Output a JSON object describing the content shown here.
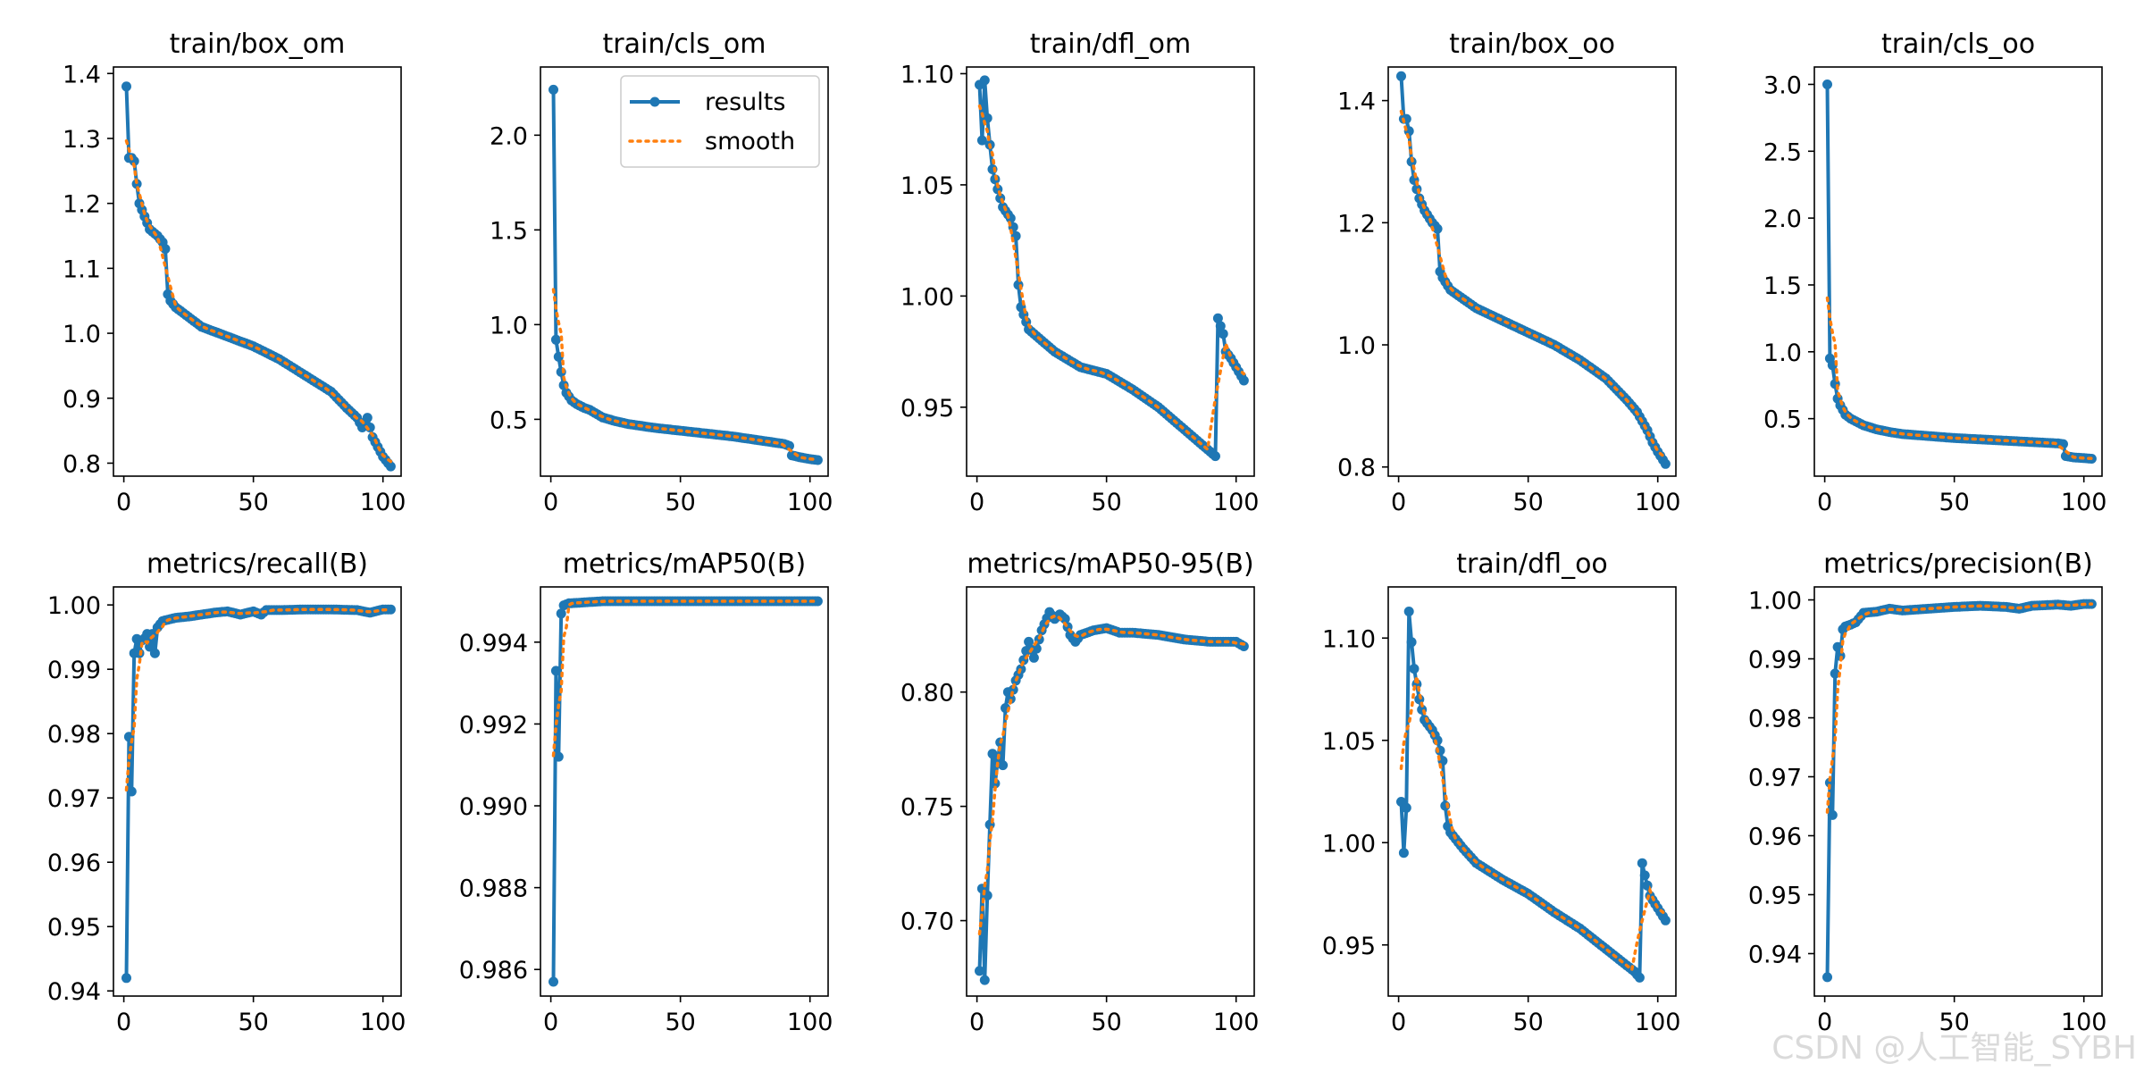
{
  "watermark": "CSDN @人工智能_SYBH",
  "legend": {
    "results": "results",
    "smooth": "smooth",
    "placement": "upper right of train/cls_om"
  },
  "colors": {
    "results": "#1f77b4",
    "smooth": "#ff7f0e",
    "axes": "#000000"
  },
  "chart_data": [
    {
      "type": "line",
      "title": "train/box_om",
      "ylim": [
        0.78,
        1.41
      ],
      "xlim": [
        -4,
        107
      ],
      "xticks": [
        0,
        50,
        100
      ],
      "yticks": [
        0.8,
        0.9,
        1.0,
        1.1,
        1.2,
        1.3,
        1.4
      ],
      "legend": false,
      "curve": [
        [
          1,
          1.38
        ],
        [
          2,
          1.27
        ],
        [
          3,
          1.27
        ],
        [
          4,
          1.265
        ],
        [
          5,
          1.23
        ],
        [
          6,
          1.2
        ],
        [
          8,
          1.18
        ],
        [
          10,
          1.16
        ],
        [
          13,
          1.15
        ],
        [
          15,
          1.14
        ],
        [
          16,
          1.13
        ],
        [
          17,
          1.06
        ],
        [
          18,
          1.05
        ],
        [
          20,
          1.04
        ],
        [
          25,
          1.025
        ],
        [
          30,
          1.01
        ],
        [
          40,
          0.995
        ],
        [
          50,
          0.98
        ],
        [
          60,
          0.96
        ],
        [
          70,
          0.935
        ],
        [
          80,
          0.91
        ],
        [
          86,
          0.885
        ],
        [
          90,
          0.87
        ],
        [
          92,
          0.855
        ],
        [
          94,
          0.87
        ],
        [
          96,
          0.84
        ],
        [
          98,
          0.825
        ],
        [
          100,
          0.81
        ],
        [
          103,
          0.795
        ]
      ]
    },
    {
      "type": "line",
      "title": "train/cls_om",
      "ylim": [
        0.2,
        2.36
      ],
      "xlim": [
        -4,
        107
      ],
      "xticks": [
        0,
        50,
        100
      ],
      "yticks": [
        0.5,
        1.0,
        1.5,
        2.0
      ],
      "legend": true,
      "curve": [
        [
          1,
          2.24
        ],
        [
          2,
          0.92
        ],
        [
          3,
          0.83
        ],
        [
          4,
          0.75
        ],
        [
          5,
          0.68
        ],
        [
          6,
          0.64
        ],
        [
          8,
          0.6
        ],
        [
          10,
          0.58
        ],
        [
          13,
          0.56
        ],
        [
          15,
          0.55
        ],
        [
          20,
          0.51
        ],
        [
          25,
          0.49
        ],
        [
          30,
          0.475
        ],
        [
          40,
          0.455
        ],
        [
          50,
          0.44
        ],
        [
          60,
          0.425
        ],
        [
          70,
          0.41
        ],
        [
          80,
          0.39
        ],
        [
          90,
          0.37
        ],
        [
          92,
          0.36
        ],
        [
          93,
          0.31
        ],
        [
          96,
          0.3
        ],
        [
          100,
          0.29
        ],
        [
          103,
          0.285
        ]
      ]
    },
    {
      "type": "line",
      "title": "train/dfl_om",
      "ylim": [
        0.919,
        1.103
      ],
      "xlim": [
        -4,
        107
      ],
      "xticks": [
        0,
        50,
        100
      ],
      "yticks": [
        0.95,
        1.0,
        1.05,
        1.1
      ],
      "legend": false,
      "curve": [
        [
          1,
          1.095
        ],
        [
          2,
          1.07
        ],
        [
          3,
          1.097
        ],
        [
          4,
          1.08
        ],
        [
          5,
          1.068
        ],
        [
          6,
          1.057
        ],
        [
          8,
          1.048
        ],
        [
          10,
          1.04
        ],
        [
          13,
          1.035
        ],
        [
          15,
          1.027
        ],
        [
          16,
          1.005
        ],
        [
          17,
          0.995
        ],
        [
          20,
          0.985
        ],
        [
          25,
          0.98
        ],
        [
          30,
          0.975
        ],
        [
          40,
          0.968
        ],
        [
          50,
          0.965
        ],
        [
          60,
          0.958
        ],
        [
          70,
          0.95
        ],
        [
          80,
          0.94
        ],
        [
          85,
          0.935
        ],
        [
          90,
          0.93
        ],
        [
          92,
          0.928
        ],
        [
          93,
          0.99
        ],
        [
          95,
          0.983
        ],
        [
          96,
          0.975
        ],
        [
          98,
          0.972
        ],
        [
          100,
          0.968
        ],
        [
          103,
          0.962
        ]
      ]
    },
    {
      "type": "line",
      "title": "train/box_oo",
      "ylim": [
        0.785,
        1.455
      ],
      "xlim": [
        -4,
        107
      ],
      "xticks": [
        0,
        50,
        100
      ],
      "yticks": [
        0.8,
        1.0,
        1.2,
        1.4
      ],
      "legend": false,
      "curve": [
        [
          1,
          1.44
        ],
        [
          2,
          1.37
        ],
        [
          3,
          1.37
        ],
        [
          4,
          1.35
        ],
        [
          5,
          1.3
        ],
        [
          6,
          1.27
        ],
        [
          8,
          1.24
        ],
        [
          10,
          1.22
        ],
        [
          13,
          1.2
        ],
        [
          15,
          1.19
        ],
        [
          16,
          1.12
        ],
        [
          17,
          1.11
        ],
        [
          20,
          1.09
        ],
        [
          25,
          1.075
        ],
        [
          30,
          1.06
        ],
        [
          40,
          1.04
        ],
        [
          50,
          1.02
        ],
        [
          60,
          1.0
        ],
        [
          70,
          0.975
        ],
        [
          80,
          0.945
        ],
        [
          88,
          0.91
        ],
        [
          92,
          0.89
        ],
        [
          96,
          0.86
        ],
        [
          98,
          0.84
        ],
        [
          100,
          0.825
        ],
        [
          103,
          0.805
        ]
      ]
    },
    {
      "type": "line",
      "title": "train/cls_oo",
      "ylim": [
        0.07,
        3.13
      ],
      "xlim": [
        -4,
        107
      ],
      "xticks": [
        0,
        50,
        100
      ],
      "yticks": [
        0.5,
        1.0,
        1.5,
        2.0,
        2.5,
        3.0
      ],
      "legend": false,
      "curve": [
        [
          1,
          3.0
        ],
        [
          2,
          0.95
        ],
        [
          3,
          0.9
        ],
        [
          4,
          0.76
        ],
        [
          5,
          0.65
        ],
        [
          6,
          0.6
        ],
        [
          8,
          0.53
        ],
        [
          10,
          0.5
        ],
        [
          13,
          0.47
        ],
        [
          15,
          0.45
        ],
        [
          20,
          0.42
        ],
        [
          25,
          0.4
        ],
        [
          30,
          0.385
        ],
        [
          40,
          0.37
        ],
        [
          50,
          0.355
        ],
        [
          60,
          0.345
        ],
        [
          70,
          0.335
        ],
        [
          80,
          0.325
        ],
        [
          90,
          0.315
        ],
        [
          92,
          0.31
        ],
        [
          93,
          0.22
        ],
        [
          96,
          0.21
        ],
        [
          100,
          0.205
        ],
        [
          103,
          0.2
        ]
      ]
    },
    {
      "type": "line",
      "title": "metrics/recall(B)",
      "ylim": [
        0.9392,
        1.0028
      ],
      "xlim": [
        -4,
        107
      ],
      "xticks": [
        0,
        50,
        100
      ],
      "yticks": [
        0.94,
        0.95,
        0.96,
        0.97,
        0.98,
        0.99,
        1.0
      ],
      "legend": false,
      "curve": [
        [
          1,
          0.942
        ],
        [
          2,
          0.9795
        ],
        [
          3,
          0.971
        ],
        [
          4,
          0.9925
        ],
        [
          5,
          0.9947
        ],
        [
          6,
          0.9925
        ],
        [
          7,
          0.9945
        ],
        [
          8,
          0.9948
        ],
        [
          9,
          0.9955
        ],
        [
          10,
          0.9935
        ],
        [
          11,
          0.9955
        ],
        [
          12,
          0.9925
        ],
        [
          13,
          0.9965
        ],
        [
          15,
          0.9975
        ],
        [
          20,
          0.998
        ],
        [
          25,
          0.9982
        ],
        [
          30,
          0.9985
        ],
        [
          35,
          0.9988
        ],
        [
          40,
          0.999
        ],
        [
          45,
          0.9985
        ],
        [
          50,
          0.999
        ],
        [
          53,
          0.9985
        ],
        [
          55,
          0.9992
        ],
        [
          60,
          0.9992
        ],
        [
          70,
          0.9993
        ],
        [
          80,
          0.9993
        ],
        [
          90,
          0.9992
        ],
        [
          95,
          0.9988
        ],
        [
          100,
          0.9993
        ],
        [
          103,
          0.9993
        ]
      ]
    },
    {
      "type": "line",
      "title": "metrics/mAP50(B)",
      "ylim": [
        0.98535,
        0.99535
      ],
      "xlim": [
        -4,
        107
      ],
      "xticks": [
        0,
        50,
        100
      ],
      "yticks": [
        0.986,
        0.988,
        0.99,
        0.992,
        0.994
      ],
      "legend": false,
      "curve": [
        [
          1,
          0.9857
        ],
        [
          2,
          0.9933
        ],
        [
          3,
          0.9912
        ],
        [
          4,
          0.9947
        ],
        [
          5,
          0.9949
        ],
        [
          7,
          0.99495
        ],
        [
          10,
          0.99496
        ],
        [
          20,
          0.995
        ],
        [
          50,
          0.995
        ],
        [
          80,
          0.995
        ],
        [
          103,
          0.995
        ]
      ]
    },
    {
      "type": "line",
      "title": "metrics/mAP50-95(B)",
      "ylim": [
        0.667,
        0.846
      ],
      "xlim": [
        -4,
        107
      ],
      "xticks": [
        0,
        50,
        100
      ],
      "yticks": [
        0.7,
        0.75,
        0.8
      ],
      "legend": false,
      "curve": [
        [
          1,
          0.678
        ],
        [
          2,
          0.714
        ],
        [
          3,
          0.674
        ],
        [
          4,
          0.711
        ],
        [
          5,
          0.742
        ],
        [
          6,
          0.773
        ],
        [
          7,
          0.76
        ],
        [
          8,
          0.77
        ],
        [
          9,
          0.778
        ],
        [
          10,
          0.768
        ],
        [
          11,
          0.793
        ],
        [
          12,
          0.8
        ],
        [
          13,
          0.797
        ],
        [
          15,
          0.805
        ],
        [
          17,
          0.81
        ],
        [
          20,
          0.822
        ],
        [
          22,
          0.815
        ],
        [
          25,
          0.827
        ],
        [
          28,
          0.835
        ],
        [
          30,
          0.832
        ],
        [
          32,
          0.834
        ],
        [
          34,
          0.832
        ],
        [
          36,
          0.825
        ],
        [
          38,
          0.822
        ],
        [
          40,
          0.825
        ],
        [
          45,
          0.827
        ],
        [
          50,
          0.828
        ],
        [
          55,
          0.826
        ],
        [
          60,
          0.826
        ],
        [
          70,
          0.825
        ],
        [
          80,
          0.823
        ],
        [
          90,
          0.822
        ],
        [
          100,
          0.822
        ],
        [
          103,
          0.82
        ]
      ]
    },
    {
      "type": "line",
      "title": "train/dfl_oo",
      "ylim": [
        0.925,
        1.125
      ],
      "xlim": [
        -4,
        107
      ],
      "xticks": [
        0,
        50,
        100
      ],
      "yticks": [
        0.95,
        1.0,
        1.05,
        1.1
      ],
      "legend": false,
      "curve": [
        [
          1,
          1.02
        ],
        [
          2,
          0.995
        ],
        [
          3,
          1.017
        ],
        [
          4,
          1.113
        ],
        [
          5,
          1.098
        ],
        [
          6,
          1.085
        ],
        [
          8,
          1.07
        ],
        [
          10,
          1.06
        ],
        [
          13,
          1.055
        ],
        [
          15,
          1.05
        ],
        [
          17,
          1.04
        ],
        [
          18,
          1.018
        ],
        [
          19,
          1.008
        ],
        [
          20,
          1.005
        ],
        [
          25,
          0.997
        ],
        [
          30,
          0.99
        ],
        [
          40,
          0.982
        ],
        [
          50,
          0.975
        ],
        [
          60,
          0.966
        ],
        [
          70,
          0.958
        ],
        [
          80,
          0.948
        ],
        [
          88,
          0.94
        ],
        [
          91,
          0.937
        ],
        [
          93,
          0.934
        ],
        [
          94,
          0.99
        ],
        [
          95,
          0.984
        ],
        [
          97,
          0.974
        ],
        [
          100,
          0.968
        ],
        [
          103,
          0.962
        ]
      ]
    },
    {
      "type": "line",
      "title": "metrics/precision(B)",
      "ylim": [
        0.9328,
        1.0022
      ],
      "xlim": [
        -4,
        107
      ],
      "xticks": [
        0,
        50,
        100
      ],
      "yticks": [
        0.94,
        0.95,
        0.96,
        0.97,
        0.98,
        0.99,
        1.0
      ],
      "legend": false,
      "curve": [
        [
          1,
          0.936
        ],
        [
          2,
          0.969
        ],
        [
          3,
          0.9635
        ],
        [
          4,
          0.9875
        ],
        [
          5,
          0.992
        ],
        [
          6,
          0.9905
        ],
        [
          7,
          0.995
        ],
        [
          8,
          0.9955
        ],
        [
          10,
          0.9958
        ],
        [
          12,
          0.9962
        ],
        [
          15,
          0.9978
        ],
        [
          20,
          0.998
        ],
        [
          25,
          0.9985
        ],
        [
          30,
          0.9982
        ],
        [
          40,
          0.9985
        ],
        [
          50,
          0.9988
        ],
        [
          60,
          0.999
        ],
        [
          70,
          0.9988
        ],
        [
          75,
          0.9985
        ],
        [
          80,
          0.999
        ],
        [
          90,
          0.9992
        ],
        [
          95,
          0.999
        ],
        [
          100,
          0.9993
        ],
        [
          103,
          0.9993
        ]
      ]
    }
  ]
}
